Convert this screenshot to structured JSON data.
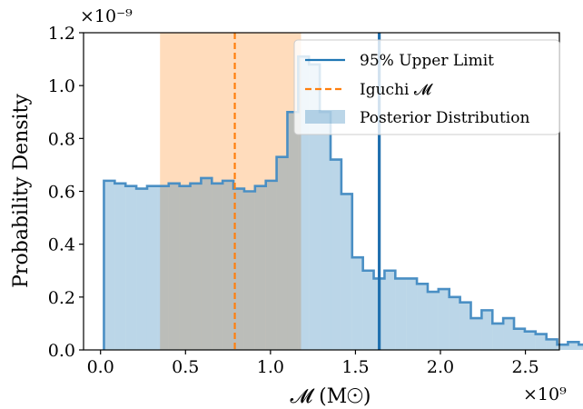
{
  "chart_data": {
    "type": "histogram",
    "xlabel": "𝓜 (M☉)",
    "ylabel": "Probability Density",
    "x_multiplier": "×10⁹",
    "y_multiplier": "×10⁻⁹",
    "xlim": [
      -0.1,
      2.7
    ],
    "ylim": [
      0,
      1.2
    ],
    "x_ticks": [
      0.0,
      0.5,
      1.0,
      1.5,
      2.0,
      2.5
    ],
    "x_tick_labels": [
      "0.0",
      "0.5",
      "1.0",
      "1.5",
      "2.0",
      "2.5"
    ],
    "y_ticks": [
      0.0,
      0.2,
      0.4,
      0.6,
      0.8,
      1.0,
      1.2
    ],
    "y_tick_labels": [
      "0.0",
      "0.2",
      "0.4",
      "0.6",
      "0.8",
      "1.0",
      "1.2"
    ],
    "bins": {
      "start": 0.02,
      "width": 0.0635,
      "values": [
        0.64,
        0.63,
        0.62,
        0.61,
        0.62,
        0.62,
        0.63,
        0.62,
        0.63,
        0.65,
        0.63,
        0.64,
        0.61,
        0.6,
        0.62,
        0.64,
        0.73,
        0.9,
        1.11,
        1.08,
        0.9,
        0.72,
        0.59,
        0.35,
        0.3,
        0.27,
        0.3,
        0.27,
        0.27,
        0.25,
        0.22,
        0.23,
        0.2,
        0.18,
        0.12,
        0.15,
        0.1,
        0.12,
        0.08,
        0.07,
        0.06,
        0.04,
        0.02,
        0.03,
        0.02,
        0.01,
        0.01,
        0.01,
        0.0,
        0.01
      ]
    },
    "upper_limit": 1.64,
    "iguchi_value": 0.79,
    "iguchi_band": [
      0.35,
      1.18
    ],
    "legend": {
      "position": "top-right",
      "entries": [
        {
          "label": "95% Upper Limit",
          "color": "#1f77b4",
          "style": "solid"
        },
        {
          "label": "Iguchi 𝓜",
          "color": "#ff7f0e",
          "style": "dashed"
        },
        {
          "label": "Posterior Distribution",
          "color": "#1f77b4",
          "style": "patch"
        }
      ]
    },
    "colors": {
      "posterior_fill": "#1f77b4",
      "posterior_edge": "#4a8fc4",
      "band_fill": "#ffdcbc",
      "iguchi_line": "#ff7f0e",
      "upper_line": "#1f6fae"
    }
  }
}
